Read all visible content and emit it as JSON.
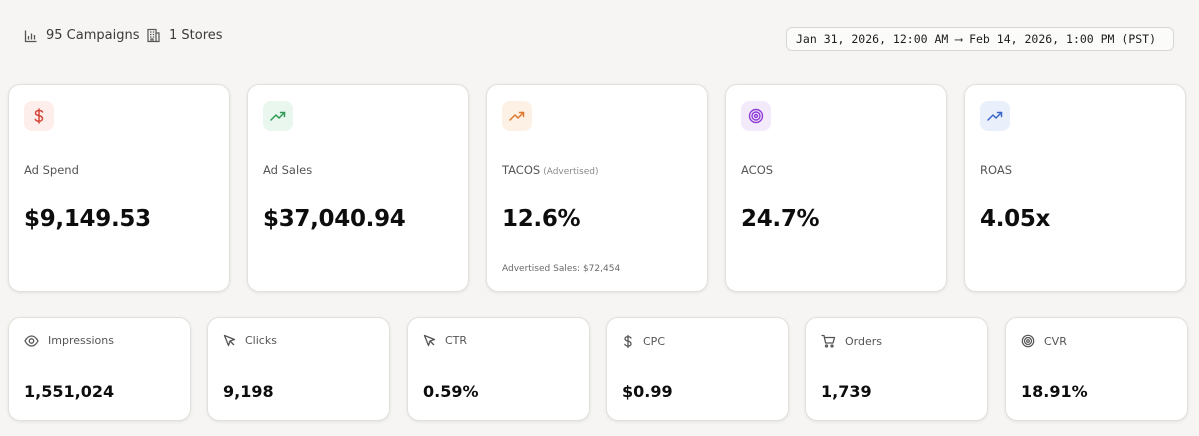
{
  "header": {
    "campaigns": "95 Campaigns",
    "stores": "1 Stores",
    "date_range": "Jan 31, 2026, 12:00 AM ⟶ Feb 14, 2026, 1:00 PM (PST)"
  },
  "kpis": [
    {
      "label": "Ad Spend",
      "value": "$9,149.53",
      "icon": "dollar-icon",
      "color": "#d6453a",
      "badge": "#fdeeec"
    },
    {
      "label": "Ad Sales",
      "value": "$37,040.94",
      "icon": "trending-up-icon",
      "color": "#2f9a55",
      "badge": "#eaf7ee"
    },
    {
      "label": "TACOS",
      "suffix": "(Advertised)",
      "value": "12.6%",
      "foot": "Advertised Sales: $72,454",
      "icon": "trending-up-icon",
      "color": "#e0772f",
      "badge": "#fdf1e6"
    },
    {
      "label": "ACOS",
      "value": "24.7%",
      "icon": "target-icon",
      "color": "#8e3bd6",
      "badge": "#f3ebfb"
    },
    {
      "label": "ROAS",
      "value": "4.05x",
      "icon": "trending-up-icon",
      "color": "#3b67c9",
      "badge": "#eaf0fb"
    }
  ],
  "metrics": [
    {
      "label": "Impressions",
      "value": "1,551,024",
      "icon": "eye-icon"
    },
    {
      "label": "Clicks",
      "value": "9,198",
      "icon": "cursor-icon"
    },
    {
      "label": "CTR",
      "value": "0.59%",
      "icon": "cursor-icon"
    },
    {
      "label": "CPC",
      "value": "$0.99",
      "icon": "dollar-icon"
    },
    {
      "label": "Orders",
      "value": "1,739",
      "icon": "cart-icon"
    },
    {
      "label": "CVR",
      "value": "18.91%",
      "icon": "target-icon"
    }
  ]
}
